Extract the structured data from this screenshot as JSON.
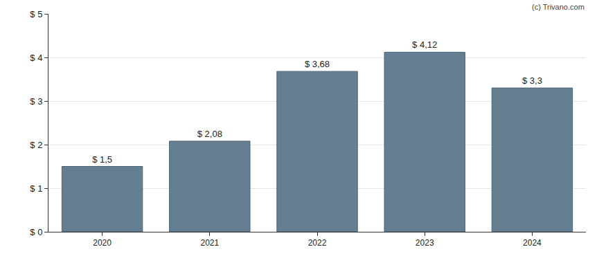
{
  "chart_data": {
    "type": "bar",
    "categories": [
      "2020",
      "2021",
      "2022",
      "2023",
      "2024"
    ],
    "values": [
      1.5,
      2.08,
      3.68,
      4.12,
      3.3
    ],
    "value_labels": [
      "$ 1,5",
      "$ 2,08",
      "$ 3,68",
      "$ 4,12",
      "$ 3,3"
    ],
    "data_labels": true,
    "color": "#647f91",
    "ylim": [
      0,
      5
    ],
    "yticks": [
      {
        "value": 0,
        "label": "$ 0"
      },
      {
        "value": 1,
        "label": "$ 1"
      },
      {
        "value": 2,
        "label": "$ 2"
      },
      {
        "value": 3,
        "label": "$ 3"
      },
      {
        "value": 4,
        "label": "$ 4"
      },
      {
        "value": 5,
        "label": "$ 5"
      }
    ],
    "grid": true,
    "annotations": [
      "(c) Trivano.com"
    ]
  }
}
